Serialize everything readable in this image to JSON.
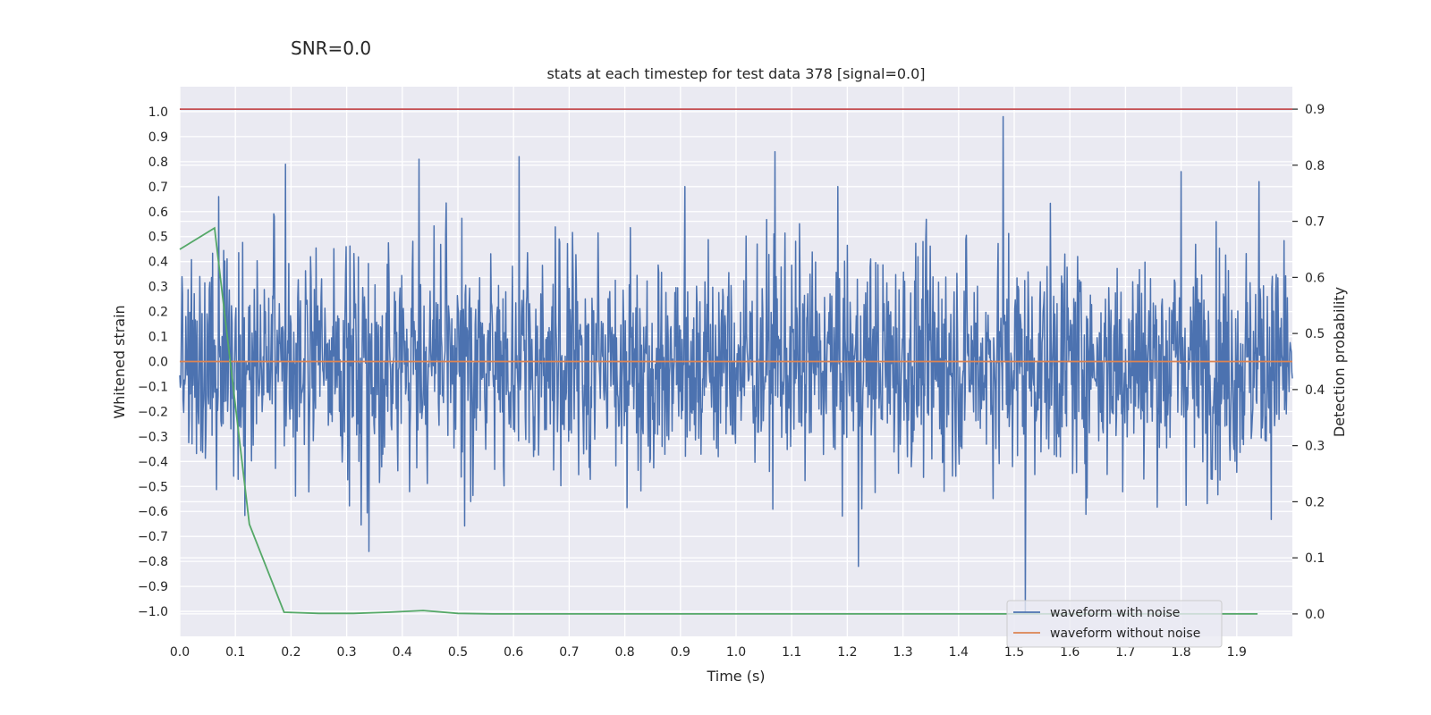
{
  "chart_data": {
    "type": "line",
    "suptitle": "SNR=0.0",
    "title": "stats at each timestep for test data 378 [signal=0.0]",
    "xlabel": "Time (s)",
    "ylabel": "Whitened strain",
    "ylabel_right": "Detection probability",
    "xlim": [
      0.0,
      2.0
    ],
    "ylim": [
      -1.1,
      1.1
    ],
    "ylim_right": [
      -0.04,
      0.94
    ],
    "grid": true,
    "legend_position": "lower right",
    "x_ticks": [
      "0.0",
      "0.1",
      "0.2",
      "0.3",
      "0.4",
      "0.5",
      "0.6",
      "0.7",
      "0.8",
      "0.9",
      "1.0",
      "1.1",
      "1.2",
      "1.3",
      "1.4",
      "1.5",
      "1.6",
      "1.7",
      "1.8",
      "1.9"
    ],
    "y_ticks": [
      "1.0",
      "0.9",
      "0.8",
      "0.7",
      "0.6",
      "0.5",
      "0.4",
      "0.3",
      "0.2",
      "0.1",
      "0.0",
      "−0.1",
      "−0.2",
      "−0.3",
      "−0.4",
      "−0.5",
      "−0.6",
      "−0.7",
      "−0.8",
      "−0.9",
      "−1.0"
    ],
    "y_right_ticks": [
      "0.9",
      "0.8",
      "0.7",
      "0.6",
      "0.5",
      "0.4",
      "0.3",
      "0.2",
      "0.1",
      "0.0"
    ],
    "series": [
      {
        "name": "waveform with noise",
        "color": "#4c72b0",
        "axis": "left",
        "description_note": "dense gaussian-like noise, approx. amplitude +/-0.35, extremes ~0.98 at t=1.48 and ~-1.0 at t=1.52",
        "peaks": [
          {
            "x": 0.07,
            "y": 0.66
          },
          {
            "x": 0.19,
            "y": 0.79
          },
          {
            "x": 0.43,
            "y": 0.81
          },
          {
            "x": 0.61,
            "y": 0.82
          },
          {
            "x": 1.07,
            "y": 0.84
          },
          {
            "x": 1.48,
            "y": 0.98
          },
          {
            "x": 1.52,
            "y": -1.0
          },
          {
            "x": 1.22,
            "y": -0.82
          },
          {
            "x": 0.34,
            "y": -0.76
          },
          {
            "x": 1.8,
            "y": 0.76
          },
          {
            "x": 1.94,
            "y": 0.72
          }
        ]
      },
      {
        "name": "waveform without noise",
        "color": "#dd8452",
        "axis": "left",
        "x": [
          0.0,
          2.0
        ],
        "y": [
          0.0,
          0.0
        ]
      },
      {
        "color": "#55a868",
        "axis": "right",
        "x": [
          0.0,
          0.0625,
          0.125,
          0.1875,
          0.25,
          0.3125,
          0.375,
          0.4375,
          0.5,
          0.5625,
          0.625,
          0.6875,
          0.75,
          0.8125,
          0.875,
          0.9375,
          1.0,
          1.0625,
          1.125,
          1.1875,
          1.25,
          1.3125,
          1.375,
          1.4375,
          1.5,
          1.5625,
          1.625,
          1.6875,
          1.75,
          1.8125,
          1.875,
          1.9375
        ],
        "y": [
          0.65,
          0.688,
          0.16,
          0.003,
          0.001,
          0.001,
          0.003,
          0.006,
          0.001,
          0.0,
          0.0,
          0.0,
          0.0,
          0.0,
          0.0,
          0.0,
          0.0,
          0.0,
          0.0,
          0.0,
          0.0,
          0.0,
          0.0,
          0.0,
          0.0,
          0.0,
          0.0,
          0.0,
          0.0,
          0.0,
          0.0,
          0.0
        ]
      },
      {
        "color": "#c44e52",
        "axis": "right",
        "x": [
          0.0,
          2.0
        ],
        "y": [
          0.9,
          0.9
        ]
      }
    ]
  },
  "colors": {
    "plot_background": "#eaeaf2",
    "grid": "#ffffff",
    "text": "#262626"
  }
}
